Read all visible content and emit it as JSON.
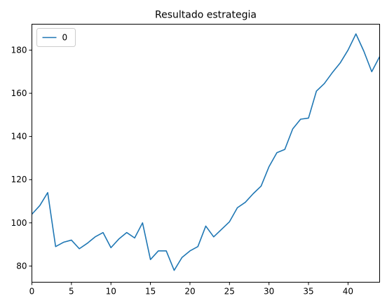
{
  "chart_data": {
    "type": "line",
    "title": "Resultado estrategia",
    "xlabel": "",
    "ylabel": "",
    "xlim": [
      0,
      44
    ],
    "ylim": [
      72.5,
      192
    ],
    "xticks": [
      0,
      5,
      10,
      15,
      20,
      25,
      30,
      35,
      40
    ],
    "yticks": [
      80,
      100,
      120,
      140,
      160,
      180
    ],
    "grid": false,
    "legend_position": "top-left",
    "series": [
      {
        "name": "0",
        "color": "#1f77b4",
        "x": [
          0,
          1,
          2,
          3,
          4,
          5,
          6,
          7,
          8,
          9,
          10,
          11,
          12,
          13,
          14,
          15,
          16,
          17,
          18,
          19,
          20,
          21,
          22,
          23,
          24,
          25,
          26,
          27,
          28,
          29,
          30,
          31,
          32,
          33,
          34,
          35,
          36,
          37,
          38,
          39,
          40,
          41,
          42,
          43,
          44
        ],
        "values": [
          104,
          108,
          114,
          89,
          91,
          92,
          88,
          90.5,
          93.5,
          95.5,
          88.5,
          92.5,
          95.5,
          93,
          100,
          83,
          87,
          87,
          78,
          84,
          87,
          89,
          98.5,
          93.5,
          97,
          100.5,
          107,
          109.5,
          113.5,
          117,
          126,
          132.5,
          134,
          143.5,
          148,
          148.5,
          161,
          164.5,
          169.5,
          174,
          180,
          187.5,
          179.5,
          170,
          177
        ]
      }
    ]
  }
}
